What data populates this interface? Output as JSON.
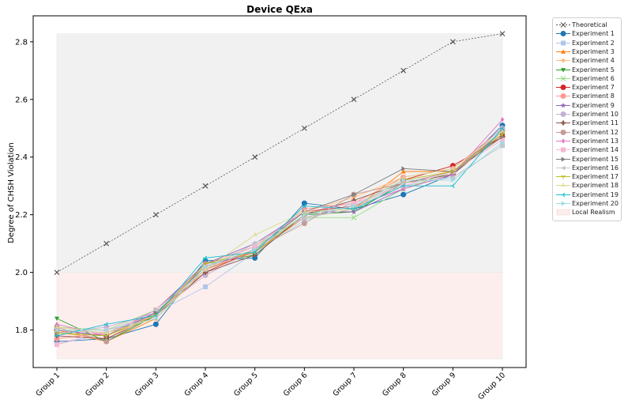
{
  "chart_data": {
    "type": "line",
    "title": "Device QExa",
    "xlabel": "",
    "ylabel": "Degree of CHSH Violation",
    "categories": [
      "Group 1",
      "Group 2",
      "Group 3",
      "Group 4",
      "Group 5",
      "Group 6",
      "Group 7",
      "Group 8",
      "Group 9",
      "Group 10"
    ],
    "ylim": [
      1.67,
      2.89
    ],
    "yticks": [
      "1.8",
      "2.0",
      "2.2",
      "2.4",
      "2.6",
      "2.8"
    ],
    "ytick_values": [
      1.8,
      2.0,
      2.2,
      2.4,
      2.6,
      2.8
    ],
    "grid": false,
    "legend_position": "outside-top-right",
    "regions": [
      {
        "name": "Local Realism",
        "y_from": 1.7,
        "y_to": 2.0,
        "color": "#fdeeee"
      },
      {
        "name": "",
        "y_from": 2.0,
        "y_to": 2.828,
        "color": "#f1f1f1"
      }
    ],
    "series": [
      {
        "name": "Theoretical",
        "color": "#555555",
        "marker": "x",
        "dashed": true,
        "values": [
          2.0,
          2.1,
          2.2,
          2.3,
          2.4,
          2.5,
          2.6,
          2.7,
          2.8,
          2.828
        ]
      },
      {
        "name": "Experiment 1",
        "color": "#1f77b4",
        "marker": "o",
        "values": [
          1.76,
          1.77,
          1.82,
          2.04,
          2.05,
          2.24,
          2.22,
          2.27,
          2.34,
          2.51
        ]
      },
      {
        "name": "Experiment 2",
        "color": "#aec7e8",
        "marker": "s",
        "values": [
          1.75,
          1.79,
          1.86,
          1.95,
          2.07,
          2.18,
          2.24,
          2.3,
          2.33,
          2.44
        ]
      },
      {
        "name": "Experiment 3",
        "color": "#ff7f0e",
        "marker": "^",
        "values": [
          1.8,
          1.76,
          1.84,
          2.01,
          2.07,
          2.19,
          2.22,
          2.35,
          2.35,
          2.48
        ]
      },
      {
        "name": "Experiment 4",
        "color": "#ffbb78",
        "marker": "D",
        "values": [
          1.79,
          1.77,
          1.86,
          2.02,
          2.08,
          2.21,
          2.26,
          2.33,
          2.36,
          2.5
        ]
      },
      {
        "name": "Experiment 5",
        "color": "#2ca02c",
        "marker": "v",
        "values": [
          1.84,
          1.76,
          1.85,
          2.03,
          2.06,
          2.2,
          2.21,
          2.31,
          2.34,
          2.49
        ]
      },
      {
        "name": "Experiment 6",
        "color": "#98df8a",
        "marker": "x",
        "values": [
          1.81,
          1.8,
          1.87,
          2.02,
          2.09,
          2.19,
          2.19,
          2.29,
          2.35,
          2.47
        ]
      },
      {
        "name": "Experiment 7",
        "color": "#d62728",
        "marker": "o",
        "values": [
          1.8,
          1.78,
          1.86,
          2.0,
          2.08,
          2.21,
          2.23,
          2.32,
          2.37,
          2.47
        ]
      },
      {
        "name": "Experiment 8",
        "color": "#ff9896",
        "marker": "o",
        "values": [
          1.77,
          1.79,
          1.85,
          2.03,
          2.09,
          2.22,
          2.24,
          2.33,
          2.36,
          2.5
        ]
      },
      {
        "name": "Experiment 9",
        "color": "#9467bd",
        "marker": "*",
        "values": [
          1.8,
          1.78,
          1.87,
          2.03,
          2.1,
          2.21,
          2.21,
          2.29,
          2.34,
          2.49
        ]
      },
      {
        "name": "Experiment 10",
        "color": "#c5b0d5",
        "marker": "o",
        "values": [
          1.79,
          1.81,
          1.86,
          1.99,
          2.08,
          2.19,
          2.23,
          2.31,
          2.35,
          2.5
        ]
      },
      {
        "name": "Experiment 11",
        "color": "#8c564b",
        "marker": "P",
        "values": [
          1.78,
          1.77,
          1.85,
          2.0,
          2.06,
          2.2,
          2.25,
          2.31,
          2.34,
          2.48
        ]
      },
      {
        "name": "Experiment 12",
        "color": "#c49c94",
        "marker": "o",
        "values": [
          1.81,
          1.76,
          1.86,
          2.01,
          2.08,
          2.17,
          2.27,
          2.31,
          2.35,
          2.49
        ]
      },
      {
        "name": "Experiment 13",
        "color": "#e377c2",
        "marker": "d",
        "values": [
          1.82,
          1.78,
          1.87,
          2.02,
          2.07,
          2.2,
          2.23,
          2.29,
          2.34,
          2.53
        ]
      },
      {
        "name": "Experiment 14",
        "color": "#f7b6d2",
        "marker": "s",
        "values": [
          1.75,
          1.8,
          1.85,
          2.02,
          2.09,
          2.21,
          2.24,
          2.3,
          2.35,
          2.46
        ]
      },
      {
        "name": "Experiment 15",
        "color": "#7f7f7f",
        "marker": ">",
        "values": [
          1.79,
          1.78,
          1.86,
          2.02,
          2.08,
          2.21,
          2.27,
          2.36,
          2.35,
          2.47
        ]
      },
      {
        "name": "Experiment 16",
        "color": "#c7c7c7",
        "marker": "<",
        "values": [
          1.8,
          1.79,
          1.87,
          2.01,
          2.1,
          2.19,
          2.22,
          2.31,
          2.33,
          2.44
        ]
      },
      {
        "name": "Experiment 17",
        "color": "#bcbd22",
        "marker": "1",
        "values": [
          1.79,
          1.78,
          1.85,
          2.03,
          2.07,
          2.2,
          2.23,
          2.32,
          2.35,
          2.48
        ]
      },
      {
        "name": "Experiment 18",
        "color": "#dbdb8d",
        "marker": "2",
        "values": [
          1.81,
          1.79,
          1.84,
          2.01,
          2.13,
          2.21,
          2.22,
          2.33,
          2.36,
          2.49
        ]
      },
      {
        "name": "Experiment 19",
        "color": "#17becf",
        "marker": "3",
        "values": [
          1.78,
          1.82,
          1.85,
          2.05,
          2.07,
          2.23,
          2.22,
          2.3,
          2.3,
          2.5
        ]
      },
      {
        "name": "Experiment 20",
        "color": "#9edae5",
        "marker": ">",
        "values": [
          1.8,
          1.8,
          1.84,
          2.02,
          2.08,
          2.2,
          2.23,
          2.32,
          2.32,
          2.45
        ]
      }
    ]
  }
}
